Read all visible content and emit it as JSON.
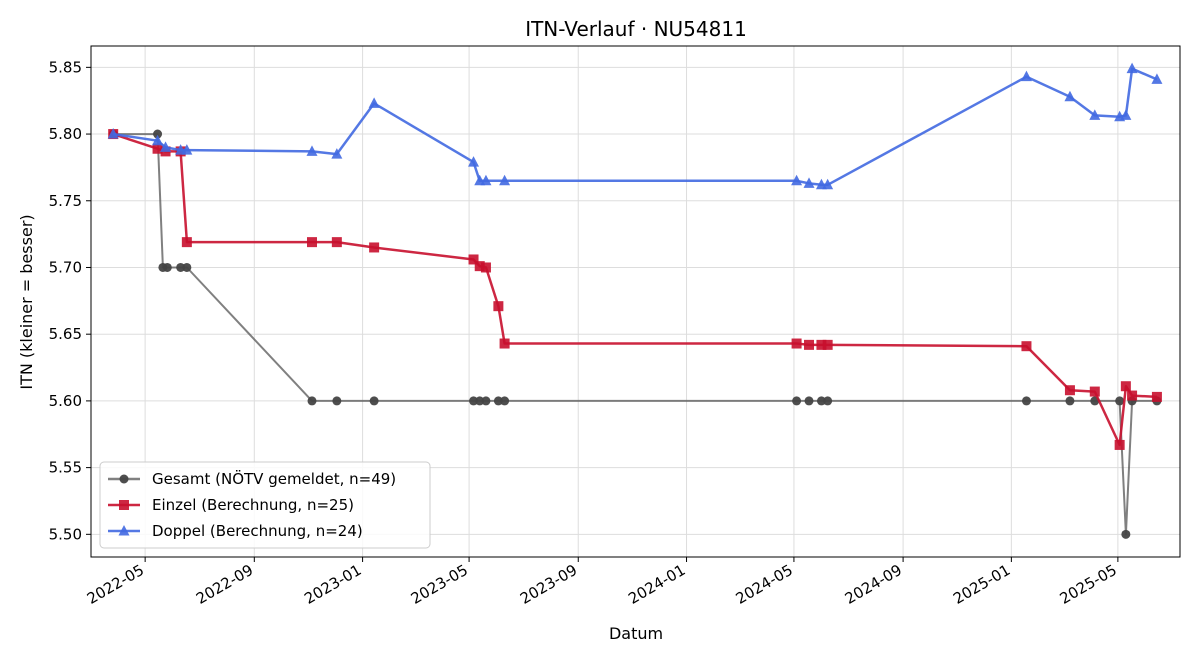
{
  "chart_data": {
    "type": "line",
    "title": "ITN-Verlauf · NU54811",
    "xlabel": "Datum",
    "ylabel": "ITN  (kleiner = besser)",
    "x_type": "date",
    "xlim": [
      "2022-03-01",
      "2025-07-10"
    ],
    "ylim": [
      5.483,
      5.866
    ],
    "x_ticks": [
      "2022-05-01",
      "2022-09-01",
      "2023-01-01",
      "2023-05-01",
      "2023-09-01",
      "2024-01-01",
      "2024-05-01",
      "2024-09-01",
      "2025-01-01",
      "2025-05-01"
    ],
    "x_tick_labels": [
      "2022-05",
      "2022-09",
      "2023-01",
      "2023-05",
      "2023-09",
      "2024-01",
      "2024-05",
      "2024-09",
      "2025-01",
      "2025-05"
    ],
    "y_ticks": [
      5.5,
      5.55,
      5.6,
      5.65,
      5.7,
      5.75,
      5.8,
      5.85
    ],
    "y_tick_labels": [
      "5.50",
      "5.55",
      "5.60",
      "5.65",
      "5.70",
      "5.75",
      "5.80",
      "5.85"
    ],
    "grid": true,
    "legend_position": "lower-left",
    "series": [
      {
        "name": "Gesamt (NÖTV gemeldet, n=49)",
        "color": "#555555",
        "marker": "circle",
        "points": [
          [
            "2022-03-26",
            5.8
          ],
          [
            "2022-05-15",
            5.8
          ],
          [
            "2022-05-21",
            5.7
          ],
          [
            "2022-05-26",
            5.7
          ],
          [
            "2022-06-10",
            5.7
          ],
          [
            "2022-06-17",
            5.7
          ],
          [
            "2022-11-05",
            5.6
          ],
          [
            "2022-12-03",
            5.6
          ],
          [
            "2023-01-14",
            5.6
          ],
          [
            "2023-05-06",
            5.6
          ],
          [
            "2023-05-13",
            5.6
          ],
          [
            "2023-05-20",
            5.6
          ],
          [
            "2023-06-03",
            5.6
          ],
          [
            "2023-06-10",
            5.6
          ],
          [
            "2024-05-04",
            5.6
          ],
          [
            "2024-05-18",
            5.6
          ],
          [
            "2024-06-01",
            5.6
          ],
          [
            "2024-06-08",
            5.6
          ],
          [
            "2025-01-18",
            5.6
          ],
          [
            "2025-03-08",
            5.6
          ],
          [
            "2025-04-05",
            5.6
          ],
          [
            "2025-05-03",
            5.6
          ],
          [
            "2025-05-10",
            5.5
          ],
          [
            "2025-05-17",
            5.6
          ],
          [
            "2025-06-14",
            5.6
          ]
        ]
      },
      {
        "name": "Einzel (Berechnung, n=25)",
        "color": "#c8102e",
        "marker": "square",
        "points": [
          [
            "2022-03-26",
            5.8
          ],
          [
            "2022-05-15",
            5.789
          ],
          [
            "2022-05-24",
            5.787
          ],
          [
            "2022-06-10",
            5.787
          ],
          [
            "2022-06-17",
            5.719
          ],
          [
            "2022-11-05",
            5.719
          ],
          [
            "2022-12-03",
            5.719
          ],
          [
            "2023-01-14",
            5.715
          ],
          [
            "2023-05-06",
            5.706
          ],
          [
            "2023-05-13",
            5.701
          ],
          [
            "2023-05-20",
            5.7
          ],
          [
            "2023-06-03",
            5.671
          ],
          [
            "2023-06-10",
            5.643
          ],
          [
            "2024-05-04",
            5.643
          ],
          [
            "2024-05-18",
            5.642
          ],
          [
            "2024-06-01",
            5.642
          ],
          [
            "2024-06-08",
            5.642
          ],
          [
            "2025-01-18",
            5.641
          ],
          [
            "2025-03-08",
            5.608
          ],
          [
            "2025-04-05",
            5.607
          ],
          [
            "2025-05-03",
            5.567
          ],
          [
            "2025-05-10",
            5.611
          ],
          [
            "2025-05-17",
            5.604
          ],
          [
            "2025-06-14",
            5.603
          ]
        ]
      },
      {
        "name": "Doppel (Berechnung, n=24)",
        "color": "#4169e1",
        "marker": "triangle",
        "points": [
          [
            "2022-03-26",
            5.8
          ],
          [
            "2022-05-15",
            5.795
          ],
          [
            "2022-05-24",
            5.79
          ],
          [
            "2022-06-10",
            5.788
          ],
          [
            "2022-06-17",
            5.788
          ],
          [
            "2022-11-05",
            5.787
          ],
          [
            "2022-12-03",
            5.785
          ],
          [
            "2023-01-14",
            5.823
          ],
          [
            "2023-05-06",
            5.779
          ],
          [
            "2023-05-13",
            5.765
          ],
          [
            "2023-05-20",
            5.765
          ],
          [
            "2023-06-10",
            5.765
          ],
          [
            "2024-05-04",
            5.765
          ],
          [
            "2024-05-18",
            5.763
          ],
          [
            "2024-06-01",
            5.762
          ],
          [
            "2024-06-08",
            5.762
          ],
          [
            "2025-01-18",
            5.843
          ],
          [
            "2025-03-08",
            5.828
          ],
          [
            "2025-04-05",
            5.814
          ],
          [
            "2025-05-03",
            5.813
          ],
          [
            "2025-05-10",
            5.814
          ],
          [
            "2025-05-17",
            5.849
          ],
          [
            "2025-06-14",
            5.841
          ]
        ]
      }
    ]
  }
}
